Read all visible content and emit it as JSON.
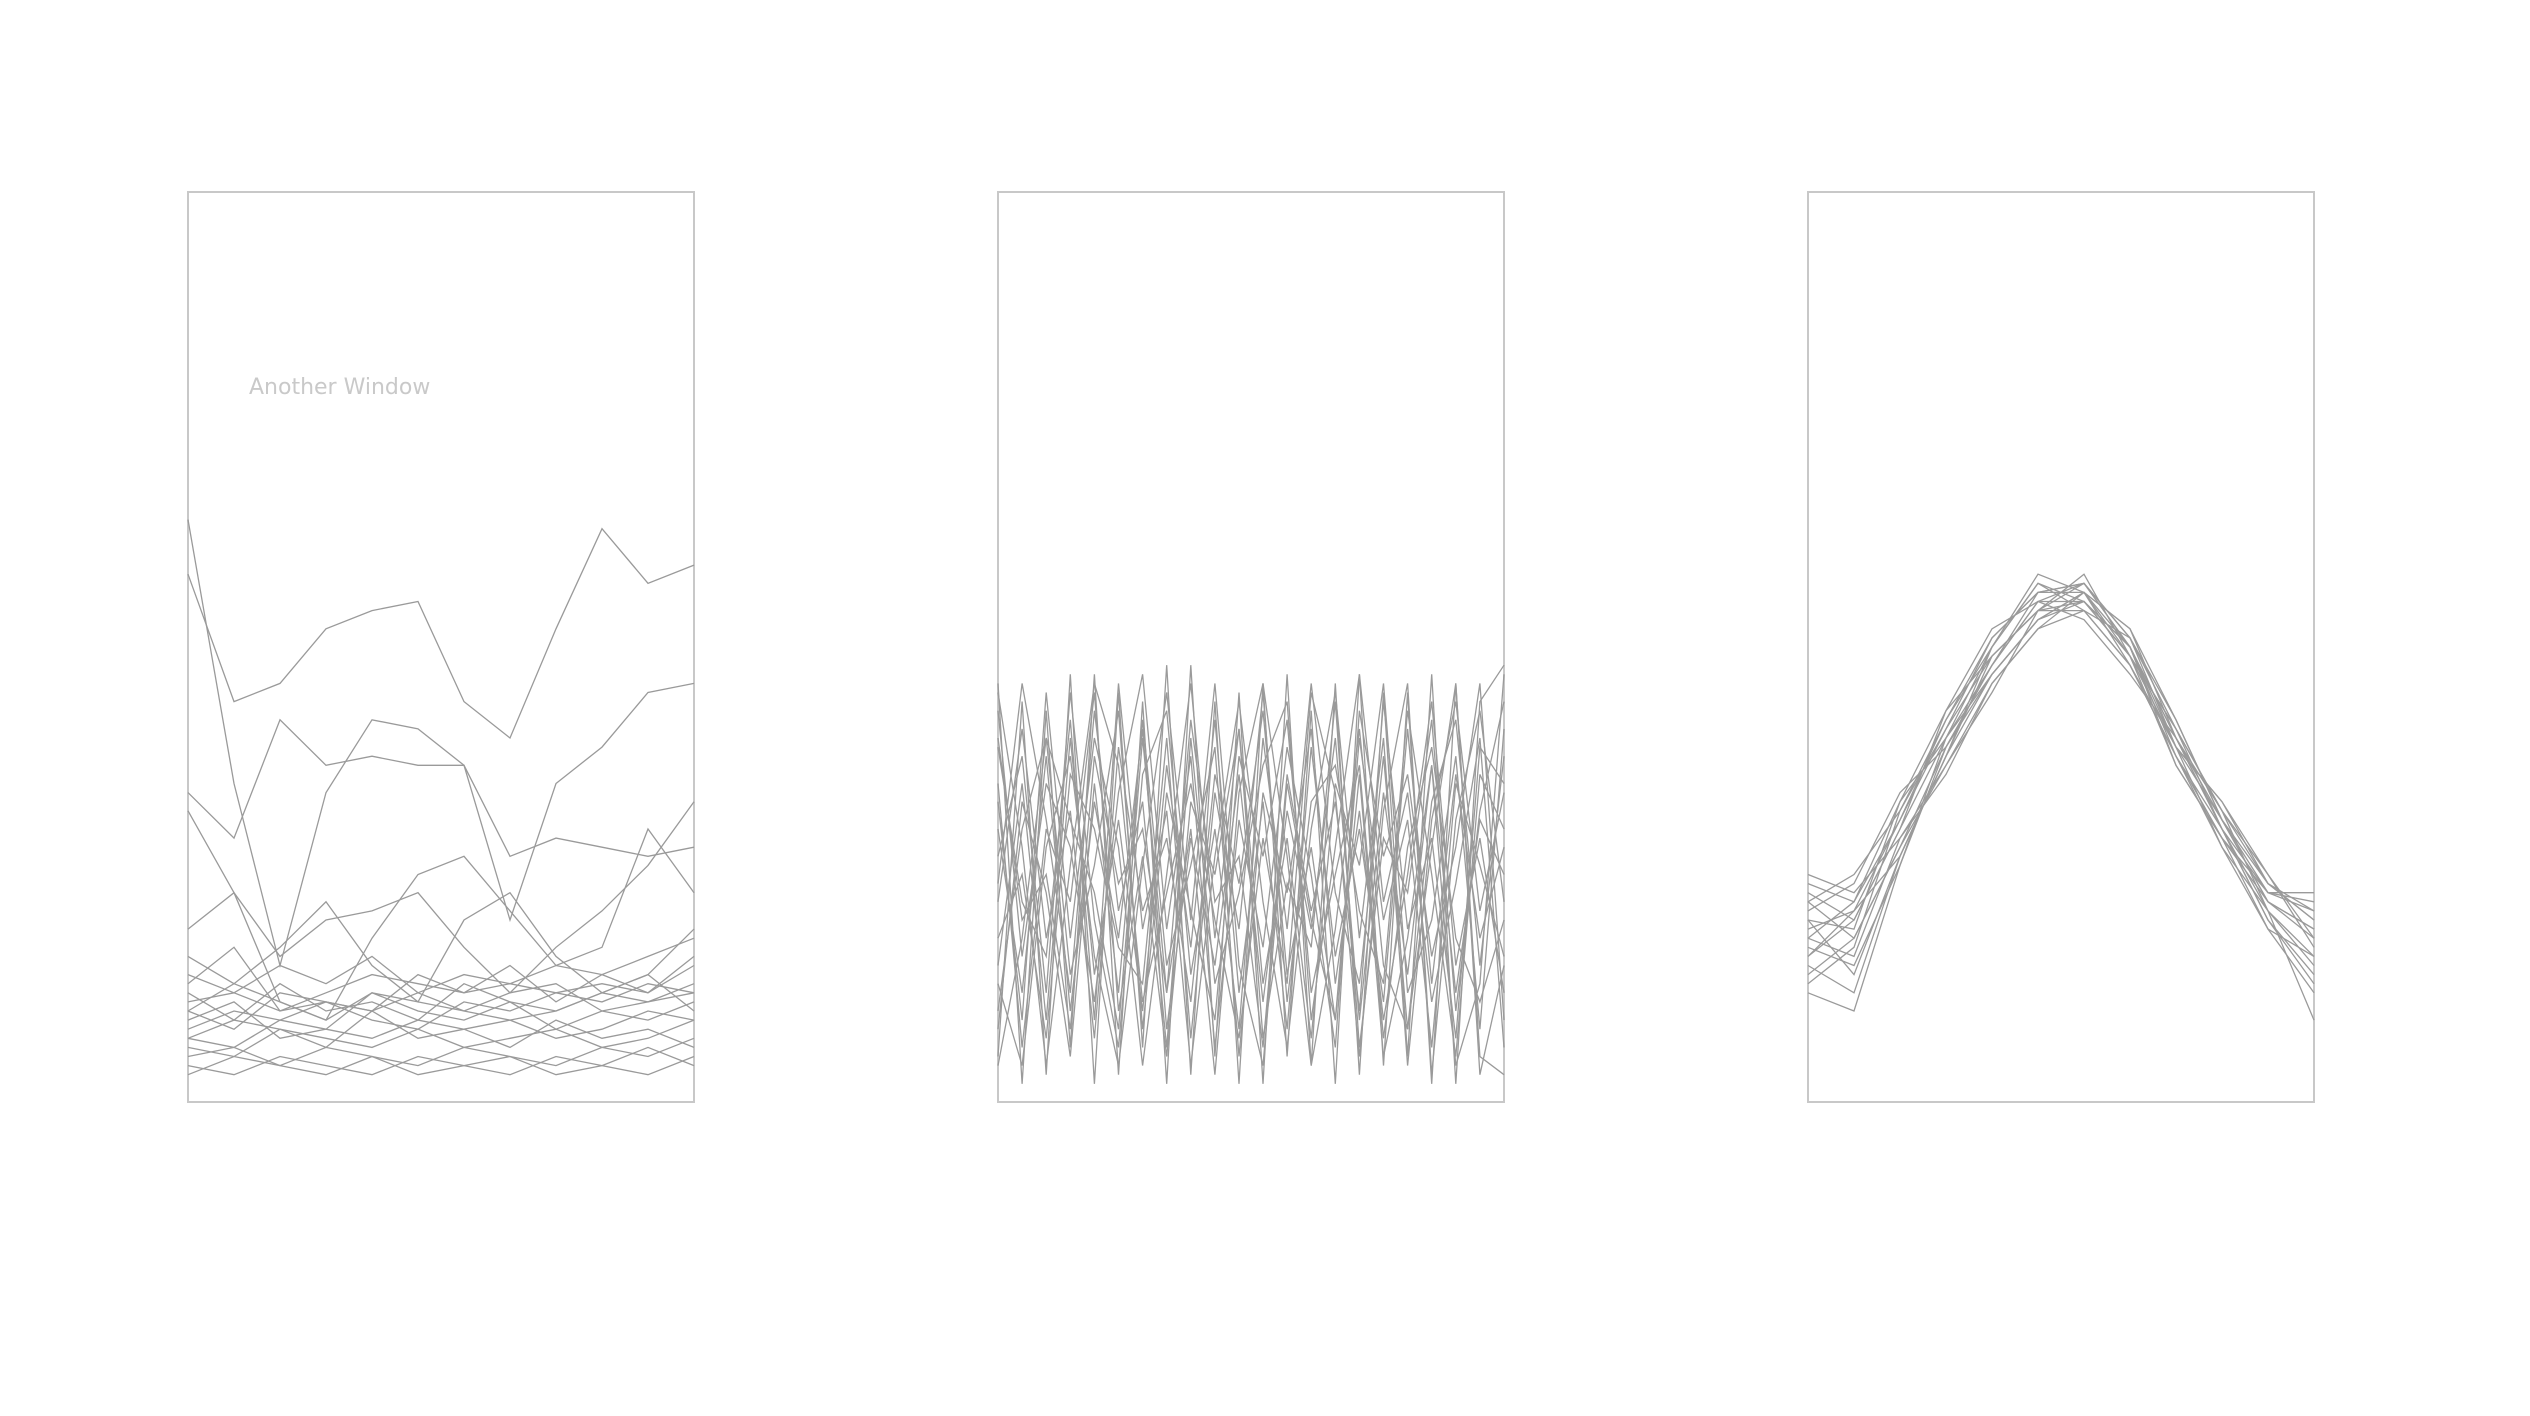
{
  "window": {
    "label": "Another Window"
  },
  "style": {
    "background": "#ffffff",
    "frame_color": "#c8c8c8",
    "line_color": "#9a9a9a",
    "label_color": "#c9c9c9"
  },
  "chart_data": [
    {
      "type": "line",
      "title": "",
      "xlabel": "",
      "ylabel": "",
      "grid": false,
      "xlim": [
        0,
        11
      ],
      "ylim": [
        0,
        1
      ],
      "x": [
        0,
        1,
        2,
        3,
        4,
        5,
        6,
        7,
        8,
        9,
        10,
        11
      ],
      "series": [
        {
          "values": [
            0.64,
            0.35,
            0.15,
            0.34,
            0.42,
            0.41,
            0.37,
            0.2,
            0.35,
            0.39,
            0.45,
            0.46
          ]
        },
        {
          "values": [
            0.58,
            0.44,
            0.46,
            0.52,
            0.54,
            0.55,
            0.44,
            0.4,
            0.52,
            0.63,
            0.57,
            0.59
          ]
        },
        {
          "values": [
            0.34,
            0.29,
            0.42,
            0.37,
            0.38,
            0.37,
            0.37,
            0.27,
            0.29,
            0.28,
            0.27,
            0.28
          ]
        },
        {
          "values": [
            0.19,
            0.23,
            0.16,
            0.2,
            0.21,
            0.23,
            0.17,
            0.12,
            0.17,
            0.21,
            0.26,
            0.33
          ]
        },
        {
          "values": [
            0.32,
            0.23,
            0.11,
            0.09,
            0.18,
            0.25,
            0.27,
            0.21,
            0.15,
            0.17,
            0.3,
            0.23
          ]
        },
        {
          "values": [
            0.16,
            0.13,
            0.17,
            0.22,
            0.15,
            0.11,
            0.2,
            0.23,
            0.16,
            0.12,
            0.14,
            0.19
          ]
        },
        {
          "values": [
            0.13,
            0.17,
            0.1,
            0.12,
            0.14,
            0.13,
            0.12,
            0.15,
            0.11,
            0.14,
            0.12,
            0.16
          ]
        },
        {
          "values": [
            0.11,
            0.12,
            0.1,
            0.11,
            0.1,
            0.14,
            0.12,
            0.13,
            0.12,
            0.13,
            0.12,
            0.15
          ]
        },
        {
          "values": [
            0.1,
            0.08,
            0.12,
            0.11,
            0.09,
            0.08,
            0.11,
            0.1,
            0.12,
            0.11,
            0.13,
            0.12
          ]
        },
        {
          "values": [
            0.08,
            0.1,
            0.09,
            0.11,
            0.1,
            0.12,
            0.1,
            0.09,
            0.1,
            0.12,
            0.11,
            0.13
          ]
        },
        {
          "values": [
            0.07,
            0.09,
            0.08,
            0.06,
            0.1,
            0.07,
            0.08,
            0.09,
            0.07,
            0.08,
            0.1,
            0.09
          ]
        },
        {
          "values": [
            0.06,
            0.05,
            0.08,
            0.07,
            0.06,
            0.08,
            0.06,
            0.07,
            0.08,
            0.06,
            0.07,
            0.09
          ]
        },
        {
          "values": [
            0.05,
            0.06,
            0.04,
            0.06,
            0.05,
            0.04,
            0.06,
            0.05,
            0.04,
            0.06,
            0.05,
            0.07
          ]
        },
        {
          "values": [
            0.04,
            0.03,
            0.05,
            0.04,
            0.03,
            0.05,
            0.04,
            0.03,
            0.05,
            0.04,
            0.03,
            0.05
          ]
        },
        {
          "values": [
            0.09,
            0.11,
            0.07,
            0.08,
            0.12,
            0.1,
            0.09,
            0.11,
            0.08,
            0.1,
            0.09,
            0.11
          ]
        },
        {
          "values": [
            0.12,
            0.09,
            0.13,
            0.1,
            0.11,
            0.09,
            0.13,
            0.11,
            0.1,
            0.12,
            0.14,
            0.1
          ]
        },
        {
          "values": [
            0.14,
            0.12,
            0.15,
            0.13,
            0.16,
            0.12,
            0.14,
            0.13,
            0.15,
            0.14,
            0.16,
            0.18
          ]
        },
        {
          "values": [
            0.07,
            0.06,
            0.09,
            0.08,
            0.07,
            0.09,
            0.08,
            0.06,
            0.09,
            0.07,
            0.08,
            0.06
          ]
        },
        {
          "values": [
            0.03,
            0.05,
            0.04,
            0.03,
            0.05,
            0.03,
            0.04,
            0.05,
            0.03,
            0.04,
            0.06,
            0.04
          ]
        },
        {
          "values": [
            0.1,
            0.13,
            0.11,
            0.09,
            0.12,
            0.11,
            0.1,
            0.12,
            0.13,
            0.1,
            0.11,
            0.12
          ]
        }
      ]
    },
    {
      "type": "line",
      "title": "",
      "xlabel": "",
      "ylabel": "",
      "grid": false,
      "xlim": [
        0,
        21
      ],
      "ylim": [
        0,
        1
      ],
      "x": [
        0,
        1,
        2,
        3,
        4,
        5,
        6,
        7,
        8,
        9,
        10,
        11,
        12,
        13,
        14,
        15,
        16,
        17,
        18,
        19,
        20,
        21
      ],
      "series": [
        {
          "values": [
            0.46,
            0.02,
            0.43,
            0.06,
            0.47,
            0.03,
            0.44,
            0.02,
            0.48,
            0.05,
            0.45,
            0.02,
            0.47,
            0.04,
            0.46,
            0.03,
            0.45,
            0.05,
            0.47,
            0.02,
            0.44,
            0.48
          ]
        },
        {
          "values": [
            0.05,
            0.44,
            0.03,
            0.47,
            0.02,
            0.45,
            0.06,
            0.48,
            0.03,
            0.44,
            0.02,
            0.46,
            0.05,
            0.43,
            0.02,
            0.47,
            0.04,
            0.45,
            0.02,
            0.46,
            0.05,
            0.03
          ]
        },
        {
          "values": [
            0.3,
            0.12,
            0.38,
            0.1,
            0.33,
            0.18,
            0.41,
            0.08,
            0.29,
            0.15,
            0.36,
            0.11,
            0.32,
            0.19,
            0.4,
            0.09,
            0.34,
            0.14,
            0.37,
            0.12,
            0.31,
            0.25
          ]
        },
        {
          "values": [
            0.15,
            0.35,
            0.09,
            0.4,
            0.14,
            0.31,
            0.1,
            0.37,
            0.17,
            0.42,
            0.12,
            0.33,
            0.08,
            0.39,
            0.16,
            0.3,
            0.11,
            0.41,
            0.13,
            0.36,
            0.18,
            0.28
          ]
        },
        {
          "values": [
            0.4,
            0.2,
            0.25,
            0.08,
            0.38,
            0.24,
            0.3,
            0.12,
            0.42,
            0.22,
            0.27,
            0.06,
            0.36,
            0.21,
            0.33,
            0.1,
            0.44,
            0.19,
            0.29,
            0.07,
            0.39,
            0.35
          ]
        },
        {
          "values": [
            0.22,
            0.41,
            0.18,
            0.32,
            0.07,
            0.39,
            0.21,
            0.29,
            0.11,
            0.36,
            0.24,
            0.43,
            0.14,
            0.28,
            0.09,
            0.4,
            0.2,
            0.31,
            0.06,
            0.35,
            0.26,
            0.16
          ]
        },
        {
          "values": [
            0.35,
            0.06,
            0.3,
            0.22,
            0.45,
            0.1,
            0.27,
            0.05,
            0.33,
            0.25,
            0.41,
            0.07,
            0.24,
            0.17,
            0.44,
            0.06,
            0.29,
            0.23,
            0.42,
            0.1,
            0.32,
            0.44
          ]
        },
        {
          "values": [
            0.1,
            0.3,
            0.4,
            0.14,
            0.26,
            0.43,
            0.08,
            0.34,
            0.21,
            0.09,
            0.38,
            0.27,
            0.42,
            0.12,
            0.25,
            0.37,
            0.07,
            0.28,
            0.39,
            0.18,
            0.11,
            0.2
          ]
        },
        {
          "values": [
            0.27,
            0.38,
            0.12,
            0.45,
            0.2,
            0.06,
            0.36,
            0.43,
            0.14,
            0.3,
            0.08,
            0.4,
            0.19,
            0.46,
            0.23,
            0.13,
            0.38,
            0.08,
            0.33,
            0.42,
            0.15,
            0.38
          ]
        },
        {
          "values": [
            0.43,
            0.16,
            0.35,
            0.28,
            0.11,
            0.34,
            0.47,
            0.19,
            0.38,
            0.06,
            0.31,
            0.17,
            0.39,
            0.25,
            0.06,
            0.43,
            0.27,
            0.36,
            0.16,
            0.28,
            0.46,
            0.09
          ]
        },
        {
          "values": [
            0.18,
            0.25,
            0.07,
            0.36,
            0.3,
            0.17,
            0.13,
            0.4,
            0.07,
            0.34,
            0.19,
            0.45,
            0.11,
            0.33,
            0.37,
            0.21,
            0.13,
            0.43,
            0.25,
            0.05,
            0.36,
            0.3
          ]
        },
        {
          "values": [
            0.33,
            0.09,
            0.45,
            0.18,
            0.4,
            0.28,
            0.04,
            0.25,
            0.46,
            0.18,
            0.41,
            0.13,
            0.29,
            0.07,
            0.35,
            0.26,
            0.46,
            0.12,
            0.2,
            0.38,
            0.08,
            0.41
          ]
        },
        {
          "values": [
            0.08,
            0.33,
            0.23,
            0.05,
            0.35,
            0.12,
            0.42,
            0.15,
            0.26,
            0.39,
            0.05,
            0.34,
            0.23,
            0.41,
            0.13,
            0.32,
            0.09,
            0.25,
            0.44,
            0.15,
            0.29,
            0.12
          ]
        },
        {
          "values": [
            0.39,
            0.22,
            0.16,
            0.42,
            0.09,
            0.46,
            0.19,
            0.32,
            0.04,
            0.27,
            0.44,
            0.22,
            0.06,
            0.3,
            0.45,
            0.18,
            0.4,
            0.04,
            0.31,
            0.44,
            0.21,
            0.34
          ]
        },
        {
          "values": [
            0.24,
            0.46,
            0.31,
            0.12,
            0.43,
            0.21,
            0.33,
            0.06,
            0.4,
            0.13,
            0.23,
            0.37,
            0.44,
            0.09,
            0.28,
            0.47,
            0.22,
            0.34,
            0.11,
            0.24,
            0.4,
            0.06
          ]
        },
        {
          "values": [
            0.13,
            0.04,
            0.28,
            0.38,
            0.16,
            0.04,
            0.26,
            0.45,
            0.2,
            0.46,
            0.15,
            0.04,
            0.35,
            0.2,
            0.09,
            0.36,
            0.05,
            0.18,
            0.37,
            0.04,
            0.13,
            0.47
          ]
        },
        {
          "values": [
            0.45,
            0.28,
            0.04,
            0.26,
            0.46,
            0.37,
            0.11,
            0.23,
            0.35,
            0.2,
            0.07,
            0.29,
            0.13,
            0.45,
            0.34,
            0.05,
            0.32,
            0.46,
            0.03,
            0.31,
            0.43,
            0.22
          ]
        },
        {
          "values": [
            0.04,
            0.18,
            0.4,
            0.31,
            0.23,
            0.08,
            0.4,
            0.12,
            0.3,
            0.03,
            0.34,
            0.46,
            0.27,
            0.04,
            0.19,
            0.41,
            0.15,
            0.08,
            0.28,
            0.46,
            0.03,
            0.15
          ]
        }
      ]
    },
    {
      "type": "line",
      "title": "",
      "xlabel": "",
      "ylabel": "",
      "grid": false,
      "xlim": [
        0,
        11
      ],
      "ylim": [
        0,
        1
      ],
      "x": [
        0,
        1,
        2,
        3,
        4,
        5,
        6,
        7,
        8,
        9,
        10,
        11
      ],
      "series": [
        {
          "values": [
            0.22,
            0.25,
            0.32,
            0.42,
            0.51,
            0.56,
            0.56,
            0.5,
            0.4,
            0.32,
            0.24,
            0.2
          ]
        },
        {
          "values": [
            0.16,
            0.21,
            0.27,
            0.38,
            0.47,
            0.53,
            0.55,
            0.49,
            0.41,
            0.3,
            0.2,
            0.13
          ]
        },
        {
          "values": [
            0.12,
            0.1,
            0.26,
            0.39,
            0.48,
            0.55,
            0.57,
            0.51,
            0.39,
            0.28,
            0.21,
            0.09
          ]
        },
        {
          "values": [
            0.24,
            0.22,
            0.31,
            0.41,
            0.49,
            0.54,
            0.54,
            0.48,
            0.38,
            0.3,
            0.23,
            0.23
          ]
        },
        {
          "values": [
            0.18,
            0.16,
            0.29,
            0.36,
            0.46,
            0.52,
            0.56,
            0.52,
            0.42,
            0.31,
            0.22,
            0.19
          ]
        },
        {
          "values": [
            0.2,
            0.19,
            0.33,
            0.4,
            0.5,
            0.57,
            0.55,
            0.5,
            0.39,
            0.33,
            0.25,
            0.17
          ]
        },
        {
          "values": [
            0.14,
            0.18,
            0.28,
            0.37,
            0.45,
            0.54,
            0.58,
            0.49,
            0.37,
            0.29,
            0.19,
            0.16
          ]
        },
        {
          "values": [
            0.23,
            0.2,
            0.3,
            0.43,
            0.52,
            0.55,
            0.53,
            0.47,
            0.4,
            0.31,
            0.24,
            0.21
          ]
        },
        {
          "values": [
            0.17,
            0.15,
            0.26,
            0.4,
            0.48,
            0.56,
            0.57,
            0.51,
            0.41,
            0.32,
            0.21,
            0.15
          ]
        },
        {
          "values": [
            0.21,
            0.24,
            0.34,
            0.39,
            0.47,
            0.53,
            0.56,
            0.48,
            0.38,
            0.29,
            0.22,
            0.18
          ]
        },
        {
          "values": [
            0.15,
            0.12,
            0.27,
            0.38,
            0.49,
            0.54,
            0.55,
            0.5,
            0.4,
            0.3,
            0.2,
            0.14
          ]
        },
        {
          "values": [
            0.19,
            0.21,
            0.31,
            0.42,
            0.5,
            0.58,
            0.56,
            0.49,
            0.39,
            0.33,
            0.24,
            0.2
          ]
        },
        {
          "values": [
            0.25,
            0.23,
            0.29,
            0.37,
            0.46,
            0.52,
            0.54,
            0.51,
            0.42,
            0.31,
            0.23,
            0.22
          ]
        },
        {
          "values": [
            0.13,
            0.17,
            0.32,
            0.41,
            0.51,
            0.56,
            0.57,
            0.5,
            0.38,
            0.28,
            0.19,
            0.12
          ]
        },
        {
          "values": [
            0.22,
            0.18,
            0.28,
            0.39,
            0.48,
            0.55,
            0.55,
            0.49,
            0.41,
            0.32,
            0.25,
            0.18
          ]
        },
        {
          "values": [
            0.16,
            0.2,
            0.3,
            0.4,
            0.47,
            0.53,
            0.56,
            0.52,
            0.4,
            0.3,
            0.21,
            0.16
          ]
        },
        {
          "values": [
            0.2,
            0.14,
            0.27,
            0.38,
            0.5,
            0.57,
            0.54,
            0.48,
            0.39,
            0.31,
            0.22,
            0.19
          ]
        },
        {
          "values": [
            0.18,
            0.22,
            0.33,
            0.43,
            0.49,
            0.54,
            0.57,
            0.5,
            0.37,
            0.29,
            0.23,
            0.21
          ]
        }
      ]
    }
  ]
}
